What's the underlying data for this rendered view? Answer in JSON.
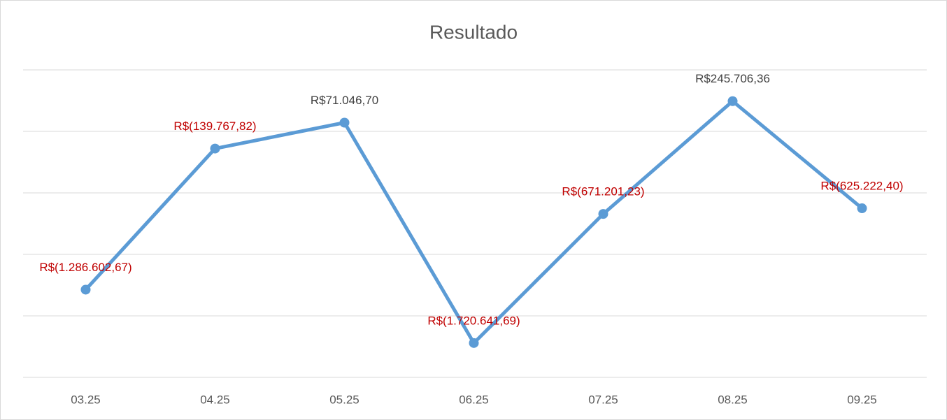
{
  "chart_data": {
    "type": "line",
    "title": "Resultado",
    "categories": [
      "03.25",
      "04.25",
      "05.25",
      "06.25",
      "07.25",
      "08.25",
      "09.25"
    ],
    "series": [
      {
        "name": "Resultado",
        "color": "#5b9bd5",
        "values": [
          -1286602.67,
          -139767.82,
          71046.7,
          -1720641.69,
          -671201.23,
          245706.36,
          -625222.4
        ],
        "value_labels": [
          "R$(1.286.602,67)",
          "R$(139.767,82)",
          "R$71.046,70",
          "R$(1.720.641,69)",
          "R$(671.201,23)",
          "R$245.706,36",
          "R$(625.222,40)"
        ]
      }
    ],
    "label_color": "#404040",
    "negative_label_color": "#c00000",
    "ylim": [
      -2000000,
      500000
    ],
    "yticks": [
      -2000000,
      -1500000,
      -1000000,
      -500000,
      0,
      500000
    ],
    "grid": true
  }
}
